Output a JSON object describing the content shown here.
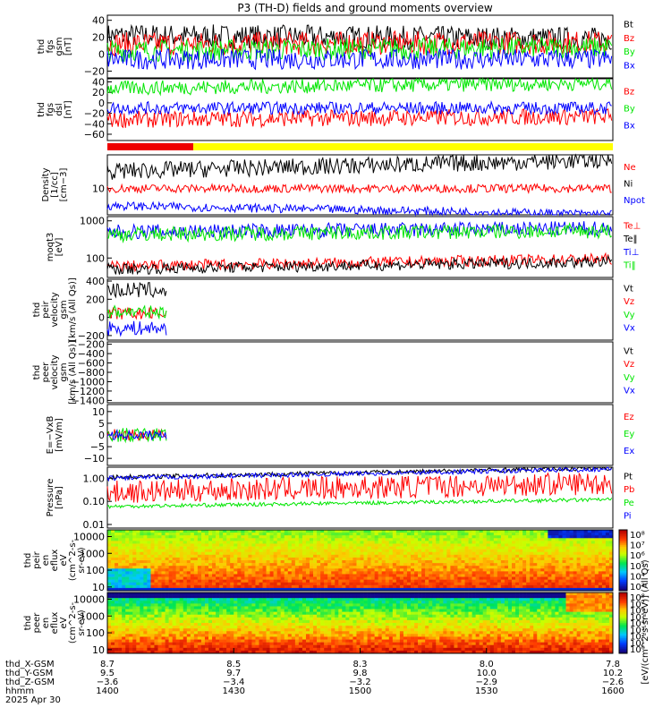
{
  "title": "P3 (TH-D) fields and ground moments overview",
  "colors": {
    "black": "#000000",
    "red": "#ff0000",
    "green": "#00e600",
    "blue": "#0000ff",
    "ep_red": "#ee0000",
    "ep_yellow": "#ffff00"
  },
  "chart_data": [
    {
      "type": "line",
      "panel": "fgs",
      "ylabel": [
        "thd",
        "fgs",
        "gsm",
        "[nT]"
      ],
      "yticks": [
        "40",
        "20",
        "0",
        "−20"
      ],
      "ylim": [
        -28,
        46
      ],
      "series": [
        {
          "name": "Bt",
          "color": "black",
          "base": 22,
          "noise": 14,
          "trend": -4
        },
        {
          "name": "Bz",
          "color": "red",
          "base": 12,
          "noise": 14,
          "trend": 2
        },
        {
          "name": "By",
          "color": "green",
          "base": 4,
          "noise": 13,
          "trend": 4
        },
        {
          "name": "Bx",
          "color": "blue",
          "base": -6,
          "noise": 12,
          "trend": 0
        }
      ]
    },
    {
      "type": "line",
      "panel": "fgs_dsl",
      "ylabel": [
        "thd",
        "fgs",
        "dsl",
        "[nT]"
      ],
      "yticks": [
        "40",
        "20",
        "0",
        "−20",
        "−40",
        "−60"
      ],
      "ylim": [
        -72,
        46
      ],
      "series": [
        {
          "name": "Bz",
          "color": "red",
          "base": -32,
          "noise": 16,
          "trend": 6
        },
        {
          "name": "By",
          "color": "green",
          "base": 28,
          "noise": 14,
          "trend": 10
        },
        {
          "name": "Bx",
          "color": "blue",
          "base": -10,
          "noise": 12,
          "trend": 0
        }
      ]
    },
    {
      "type": "bar",
      "panel": "ephemeris_bar",
      "segments": [
        {
          "color": "ep_red",
          "start": 0.0,
          "end": 0.17
        },
        {
          "color": "ep_yellow",
          "start": 0.17,
          "end": 1.0
        }
      ]
    },
    {
      "type": "line",
      "panel": "density",
      "ylabel": [
        "Density",
        "[1/cc]",
        "[cm−3]"
      ],
      "yticks": [
        "10"
      ],
      "scale": "log",
      "ylim": [
        1.2,
        150
      ],
      "series": [
        {
          "name": "Ne",
          "color": "red",
          "base": 10,
          "noise": 0.15,
          "trend": 0
        },
        {
          "name": "Ni",
          "color": "black",
          "base": 40,
          "noise": 0.3,
          "trend": 0.4
        },
        {
          "name": "Npot",
          "color": "blue",
          "base": 2.5,
          "noise": 0.15,
          "trend": -0.3
        }
      ]
    },
    {
      "type": "line",
      "panel": "temperature",
      "ylabel": [
        "moqt3",
        "[eV]"
      ],
      "yticks": [
        "1000",
        "100"
      ],
      "scale": "log",
      "ylim": [
        30,
        1300
      ],
      "series": [
        {
          "name": "Te⊥",
          "color": "red",
          "base": 60,
          "noise": 0.15,
          "trend": 0.2
        },
        {
          "name": "Te‖",
          "color": "black",
          "base": 50,
          "noise": 0.15,
          "trend": 0.2
        },
        {
          "name": "Ti⊥",
          "color": "blue",
          "base": 500,
          "noise": 0.2,
          "trend": 0.1
        },
        {
          "name": "Ti‖",
          "color": "green",
          "base": 430,
          "noise": 0.2,
          "trend": 0.1
        }
      ]
    },
    {
      "type": "line",
      "panel": "peir_velocity",
      "ylabel": [
        "thd",
        "peir",
        "velocity",
        "gsm",
        "[km/s (All Qs)]"
      ],
      "yticks": [
        "400",
        "200",
        "0",
        "−200"
      ],
      "ylim": [
        -250,
        420
      ],
      "series": [
        {
          "name": "Vt",
          "color": "black",
          "base": 300,
          "noise": 90,
          "trend": 0
        },
        {
          "name": "Vz",
          "color": "red",
          "base": 40,
          "noise": 70,
          "trend": 0
        },
        {
          "name": "Vy",
          "color": "green",
          "base": 60,
          "noise": 70,
          "trend": 0
        },
        {
          "name": "Vx",
          "color": "blue",
          "base": -120,
          "noise": 80,
          "trend": 0
        }
      ]
    },
    {
      "type": "line",
      "panel": "peer_velocity",
      "ylabel": [
        "thd",
        "peer",
        "velocity",
        "gsm",
        "[km/s (All Qs)]"
      ],
      "yticks": [
        "−200",
        "−400",
        "−600",
        "−800",
        "−1000",
        "−1200",
        "−1400"
      ],
      "ylim": [
        -1450,
        -150
      ],
      "series": [
        {
          "name": "Vt",
          "color": "black"
        },
        {
          "name": "Vz",
          "color": "red"
        },
        {
          "name": "Vy",
          "color": "green"
        },
        {
          "name": "Vx",
          "color": "blue"
        }
      ]
    },
    {
      "type": "line",
      "panel": "efield",
      "ylabel": [
        "E=−VxB",
        "[mV/m]"
      ],
      "yticks": [
        "10",
        "5",
        "0",
        "−5",
        "−10"
      ],
      "ylim": [
        -13,
        13
      ],
      "series": [
        {
          "name": "Ez",
          "color": "red",
          "base": 0,
          "noise": 2.5,
          "trend": 0
        },
        {
          "name": "Ey",
          "color": "green",
          "base": 0,
          "noise": 3,
          "trend": 0
        },
        {
          "name": "Ex",
          "color": "blue",
          "base": 0,
          "noise": 2,
          "trend": 0
        }
      ]
    },
    {
      "type": "line",
      "panel": "pressure",
      "ylabel": [
        "Pressure",
        "[nPa]"
      ],
      "yticks": [
        "1.00",
        "0.10",
        "0.01"
      ],
      "scale": "log",
      "ylim": [
        0.007,
        3
      ],
      "series": [
        {
          "name": "Pt",
          "color": "black",
          "base": 1.1,
          "noise": 0.1,
          "trend": 0.4
        },
        {
          "name": "Pb",
          "color": "red",
          "base": 0.25,
          "noise": 0.5,
          "trend": 0.4
        },
        {
          "name": "Pe",
          "color": "green",
          "base": 0.06,
          "noise": 0.08,
          "trend": 0.3
        },
        {
          "name": "Pi",
          "color": "blue",
          "base": 1.0,
          "noise": 0.1,
          "trend": 0.4
        }
      ]
    },
    {
      "type": "heatmap",
      "panel": "peir_spectrogram",
      "ylabel": [
        "thd",
        "peir",
        "en",
        "eflux",
        "eV",
        "(cm^2-s-",
        "sr-eV)"
      ],
      "yticks": [
        "10000",
        "1000",
        "100",
        "10"
      ],
      "colorbar_ticks": [
        "10⁸",
        "10⁷",
        "10⁶",
        "10⁵",
        "10⁴",
        "10³"
      ]
    },
    {
      "type": "heatmap",
      "panel": "peer_spectrogram",
      "ylabel": [
        "thd",
        "peer",
        "en",
        "eflux",
        "eV",
        "(cm^2-s-",
        "sr-eV)"
      ],
      "yticks": [
        "10000",
        "1000",
        "100",
        "10"
      ],
      "colorbar_ticks": [
        "10⁸",
        "10⁷",
        "10⁶",
        "10⁵",
        "10⁴",
        "10³",
        "10²",
        "10¹",
        "10⁰"
      ]
    }
  ],
  "colorbar_label": "[eV/(cm^2-s-sr-eV)] (All Qs)",
  "x_axis": {
    "row_labels": [
      "thd_X-GSM",
      "thd_Y-GSM",
      "thd_Z-GSM",
      "hhmm",
      "2025 Apr 30"
    ],
    "ticks": [
      {
        "x": "8.7",
        "y": "9.5",
        "z": "−3.6",
        "hhmm": "1400"
      },
      {
        "x": "8.5",
        "y": "9.7",
        "z": "−3.4",
        "hhmm": "1430"
      },
      {
        "x": "8.3",
        "y": "9.8",
        "z": "−3.2",
        "hhmm": "1500"
      },
      {
        "x": "8.0",
        "y": "10.0",
        "z": "−2.9",
        "hhmm": "1530"
      },
      {
        "x": "7.8",
        "y": "10.2",
        "z": "−2.6",
        "hhmm": "1600"
      }
    ]
  }
}
